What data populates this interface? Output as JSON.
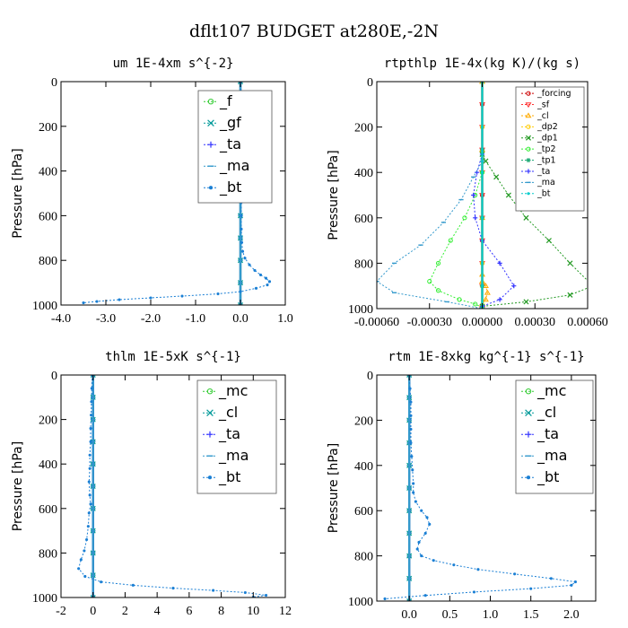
{
  "title": "dflt107  BUDGET at280E,-2N",
  "chart_data": [
    {
      "type": "line",
      "title": "um   1E-4xm s^{-2}",
      "ylabel": "Pressure [hPa]",
      "xlim": [
        -4.0,
        1.0
      ],
      "ylim": [
        1000,
        0
      ],
      "xticks": [
        -4.0,
        -3.0,
        -2.0,
        -1.0,
        0.0,
        1.0
      ],
      "xticklabels": [
        "-4.0",
        "-3.0",
        "-2.0",
        "-1.0",
        "0.0",
        "1.0"
      ],
      "yticks": [
        0,
        200,
        400,
        600,
        800,
        1000
      ],
      "yticklabels": [
        "0",
        "200",
        "400",
        "600",
        "800",
        "1000"
      ],
      "legend_position": "top-right",
      "series": [
        {
          "name": "_f",
          "color": "#33cc33",
          "marker": "o",
          "x": [
            0,
            0,
            0,
            0,
            0,
            0,
            0,
            0,
            0,
            0,
            0
          ],
          "y": [
            0,
            100,
            200,
            300,
            400,
            500,
            600,
            700,
            800,
            900,
            1000
          ]
        },
        {
          "name": "_gf",
          "color": "#009999",
          "marker": "x",
          "x": [
            0,
            0,
            0,
            0,
            0,
            0,
            0,
            0,
            0,
            0,
            0
          ],
          "y": [
            0,
            100,
            200,
            300,
            400,
            500,
            600,
            700,
            800,
            900,
            1000
          ]
        },
        {
          "name": "_ta",
          "color": "#3333ff",
          "marker": "+",
          "x": [
            0,
            0,
            0,
            0,
            0,
            0,
            0,
            0,
            0,
            0,
            0
          ],
          "y": [
            0,
            100,
            200,
            300,
            400,
            500,
            600,
            700,
            800,
            900,
            1000
          ]
        },
        {
          "name": "_ma",
          "color": "#3399cc",
          "marker": "dash",
          "x": [
            0,
            0,
            0,
            0,
            0,
            0,
            0,
            0,
            0,
            0,
            0
          ],
          "y": [
            0,
            100,
            200,
            300,
            400,
            500,
            600,
            700,
            800,
            900,
            1000
          ]
        },
        {
          "name": "_bt",
          "color": "#1a7fd4",
          "marker": "dot",
          "x": [
            0.0,
            0.02,
            0.06,
            0.1,
            0.12,
            0.1,
            0.06,
            0.03,
            0.02,
            0.02,
            0.02,
            0.02,
            0.02,
            0.03,
            0.05,
            0.1,
            0.2,
            0.32,
            0.45,
            0.57,
            0.65,
            0.6,
            0.35,
            0.0,
            -0.5,
            -1.3,
            -2.0,
            -2.7,
            -3.2,
            -3.5
          ],
          "y": [
            0,
            60,
            120,
            160,
            200,
            240,
            300,
            360,
            420,
            480,
            540,
            600,
            660,
            720,
            760,
            790,
            820,
            845,
            865,
            880,
            895,
            910,
            925,
            940,
            950,
            960,
            968,
            976,
            984,
            990
          ]
        }
      ]
    },
    {
      "type": "line",
      "title": "rtpthlp   1E-4x(kg K)/(kg s)",
      "ylabel": "Pressure [hPa]",
      "xlim": [
        -0.0006,
        0.0006
      ],
      "ylim": [
        1000,
        0
      ],
      "xticks": [
        -0.0006,
        -0.0003,
        0.0,
        0.0003,
        0.0006
      ],
      "xticklabels": [
        "-0.00060",
        "-0.00030",
        "0.00000",
        "0.00030",
        "0.00060"
      ],
      "yticks": [
        0,
        200,
        400,
        600,
        800,
        1000
      ],
      "yticklabels": [
        "0",
        "200",
        "400",
        "600",
        "800",
        "1000"
      ],
      "legend_position": "top-right",
      "series": [
        {
          "name": "_forcing",
          "color": "#cc0000",
          "marker": "o",
          "x": [
            0,
            0,
            0,
            0,
            0,
            0,
            0,
            0,
            0,
            0,
            0
          ],
          "y": [
            0,
            100,
            200,
            300,
            400,
            500,
            600,
            700,
            800,
            900,
            1000
          ]
        },
        {
          "name": "_sf",
          "color": "#ff3333",
          "marker": "v",
          "x": [
            0,
            0,
            0,
            0,
            0,
            0,
            0,
            0,
            0,
            0,
            0
          ],
          "y": [
            0,
            100,
            200,
            300,
            400,
            500,
            600,
            700,
            800,
            900,
            1000
          ]
        },
        {
          "name": "_cl",
          "color": "#ffaa00",
          "marker": "^",
          "x": [
            0,
            0,
            0,
            0,
            0,
            2e-05,
            3e-05,
            2e-05,
            0.0,
            0.0
          ],
          "y": [
            0,
            300,
            600,
            850,
            880,
            900,
            930,
            960,
            980,
            1000
          ]
        },
        {
          "name": "_dp2",
          "color": "#ffcc00",
          "marker": "o",
          "x": [
            0,
            0,
            0,
            0,
            0,
            0,
            0
          ],
          "y": [
            0,
            200,
            400,
            600,
            800,
            900,
            1000
          ]
        },
        {
          "name": "_dp1",
          "color": "#229922",
          "marker": "x",
          "x": [
            0.0,
            2e-05,
            8e-05,
            0.00015,
            0.00025,
            0.00038,
            0.0005,
            0.00063,
            0.0005,
            0.00025,
            0.0
          ],
          "y": [
            320,
            350,
            420,
            500,
            600,
            700,
            800,
            900,
            940,
            970,
            990
          ]
        },
        {
          "name": "_tp2",
          "color": "#33ee33",
          "marker": "o",
          "x": [
            0.0,
            -4e-05,
            -0.0001,
            -0.00018,
            -0.00025,
            -0.0003,
            -0.00025,
            -0.00013,
            -4e-05,
            0.0
          ],
          "y": [
            400,
            500,
            600,
            700,
            800,
            880,
            920,
            960,
            980,
            995
          ]
        },
        {
          "name": "_tp1",
          "color": "#22aa77",
          "marker": "*",
          "x": [
            0.0,
            0.0,
            0.0,
            0.0,
            0.0
          ],
          "y": [
            0,
            300,
            600,
            900,
            1000
          ]
        },
        {
          "name": "_ta",
          "color": "#3333ff",
          "marker": "+",
          "x": [
            0.0,
            -3e-05,
            -5e-05,
            -4e-05,
            0.0,
            0.0001,
            0.00018,
            0.0001,
            0.0
          ],
          "y": [
            320,
            400,
            500,
            600,
            700,
            800,
            900,
            960,
            990
          ]
        },
        {
          "name": "_ma",
          "color": "#3399cc",
          "marker": "dash",
          "x": [
            0.0,
            -5e-05,
            -0.00012,
            -0.00022,
            -0.00035,
            -0.0005,
            -0.0006,
            -0.0005,
            -0.0002,
            0.0
          ],
          "y": [
            350,
            420,
            520,
            620,
            720,
            800,
            880,
            930,
            970,
            1000
          ]
        },
        {
          "name": "_bt",
          "color": "#00cccc",
          "marker": "dot",
          "x": [
            0,
            0,
            0,
            0,
            0,
            0,
            0
          ],
          "y": [
            0,
            200,
            400,
            600,
            800,
            900,
            1000
          ]
        }
      ]
    },
    {
      "type": "line",
      "title": "thlm   1E-5xK s^{-1}",
      "ylabel": "Pressure [hPa]",
      "xlim": [
        -2,
        12
      ],
      "ylim": [
        1000,
        0
      ],
      "xticks": [
        -2,
        0,
        2,
        4,
        6,
        8,
        10,
        12
      ],
      "xticklabels": [
        "-2",
        "0",
        "2",
        "4",
        "6",
        "8",
        "10",
        "12"
      ],
      "yticks": [
        0,
        200,
        400,
        600,
        800,
        1000
      ],
      "yticklabels": [
        "0",
        "200",
        "400",
        "600",
        "800",
        "1000"
      ],
      "legend_position": "top-right",
      "series": [
        {
          "name": "_mc",
          "color": "#33cc33",
          "marker": "o",
          "x": [
            0,
            0,
            0,
            0,
            0,
            0,
            0,
            0,
            0,
            0,
            0
          ],
          "y": [
            0,
            100,
            200,
            300,
            400,
            500,
            600,
            700,
            800,
            900,
            1000
          ]
        },
        {
          "name": "_cl",
          "color": "#009999",
          "marker": "x",
          "x": [
            0,
            0,
            0,
            0,
            0,
            0,
            0,
            0,
            0,
            0,
            0
          ],
          "y": [
            0,
            100,
            200,
            300,
            400,
            500,
            600,
            700,
            800,
            900,
            1000
          ]
        },
        {
          "name": "_ta",
          "color": "#3333ff",
          "marker": "+",
          "x": [
            0,
            0,
            0,
            0,
            0,
            0,
            0,
            0,
            0,
            0,
            0
          ],
          "y": [
            0,
            100,
            200,
            300,
            400,
            500,
            600,
            700,
            800,
            900,
            1000
          ]
        },
        {
          "name": "_ma",
          "color": "#3399cc",
          "marker": "dash",
          "x": [
            0,
            0,
            0,
            0,
            0,
            0,
            0,
            0,
            0,
            0,
            0
          ],
          "y": [
            0,
            100,
            200,
            300,
            400,
            500,
            600,
            700,
            800,
            900,
            1000
          ]
        },
        {
          "name": "_bt",
          "color": "#1a7fd4",
          "marker": "dot",
          "x": [
            -0.05,
            -0.08,
            -0.1,
            -0.12,
            -0.15,
            -0.15,
            -0.2,
            -0.2,
            -0.25,
            -0.2,
            -0.15,
            -0.25,
            -0.3,
            -0.4,
            -0.55,
            -0.75,
            -0.9,
            -0.5,
            0.5,
            2.5,
            5.0,
            7.5,
            9.5,
            10.8,
            10.0
          ],
          "y": [
            0,
            60,
            120,
            180,
            240,
            300,
            360,
            420,
            480,
            540,
            580,
            620,
            680,
            740,
            790,
            830,
            870,
            905,
            930,
            945,
            958,
            968,
            978,
            990,
            998
          ]
        }
      ]
    },
    {
      "type": "line",
      "title": "rtm   1E-8xkg kg^{-1} s^{-1}",
      "ylabel": "Pressure [hPa]",
      "xlim": [
        -0.4,
        2.3
      ],
      "ylim": [
        1000,
        0
      ],
      "xticks": [
        0.0,
        0.5,
        1.0,
        1.5,
        2.0
      ],
      "xticklabels": [
        "0.0",
        "0.5",
        "1.0",
        "1.5",
        "2.0"
      ],
      "yticks": [
        0,
        200,
        400,
        600,
        800,
        1000
      ],
      "yticklabels": [
        "0",
        "200",
        "400",
        "600",
        "800",
        "1000"
      ],
      "legend_position": "top-right",
      "series": [
        {
          "name": "_mc",
          "color": "#33cc33",
          "marker": "o",
          "x": [
            0,
            0,
            0,
            0,
            0,
            0,
            0,
            0,
            0,
            0,
            0
          ],
          "y": [
            0,
            100,
            200,
            300,
            400,
            500,
            600,
            700,
            800,
            900,
            1000
          ]
        },
        {
          "name": "_cl",
          "color": "#009999",
          "marker": "x",
          "x": [
            0,
            0,
            0,
            0,
            0,
            0,
            0,
            0,
            0,
            0,
            0
          ],
          "y": [
            0,
            100,
            200,
            300,
            400,
            500,
            600,
            700,
            800,
            900,
            1000
          ]
        },
        {
          "name": "_ta",
          "color": "#3333ff",
          "marker": "+",
          "x": [
            0,
            0,
            0,
            0,
            0,
            0,
            0,
            0,
            0,
            0,
            0
          ],
          "y": [
            0,
            100,
            200,
            300,
            400,
            500,
            600,
            700,
            800,
            900,
            1000
          ]
        },
        {
          "name": "_ma",
          "color": "#3399cc",
          "marker": "dash",
          "x": [
            0,
            0,
            0,
            0,
            0,
            0,
            0,
            0,
            0,
            0,
            0
          ],
          "y": [
            0,
            100,
            200,
            300,
            400,
            500,
            600,
            700,
            800,
            900,
            1000
          ]
        },
        {
          "name": "_bt",
          "color": "#1a7fd4",
          "marker": "dot",
          "x": [
            0.0,
            0.01,
            0.02,
            0.02,
            0.02,
            0.02,
            0.03,
            0.04,
            0.05,
            0.05,
            0.08,
            0.15,
            0.22,
            0.25,
            0.2,
            0.12,
            0.1,
            0.15,
            0.3,
            0.55,
            0.85,
            1.3,
            1.75,
            2.05,
            2.0,
            1.5,
            0.8,
            0.2,
            -0.3
          ],
          "y": [
            0,
            60,
            120,
            180,
            240,
            300,
            360,
            420,
            480,
            520,
            560,
            600,
            630,
            660,
            700,
            740,
            770,
            800,
            820,
            840,
            860,
            880,
            900,
            915,
            930,
            945,
            960,
            975,
            990
          ]
        }
      ]
    }
  ]
}
